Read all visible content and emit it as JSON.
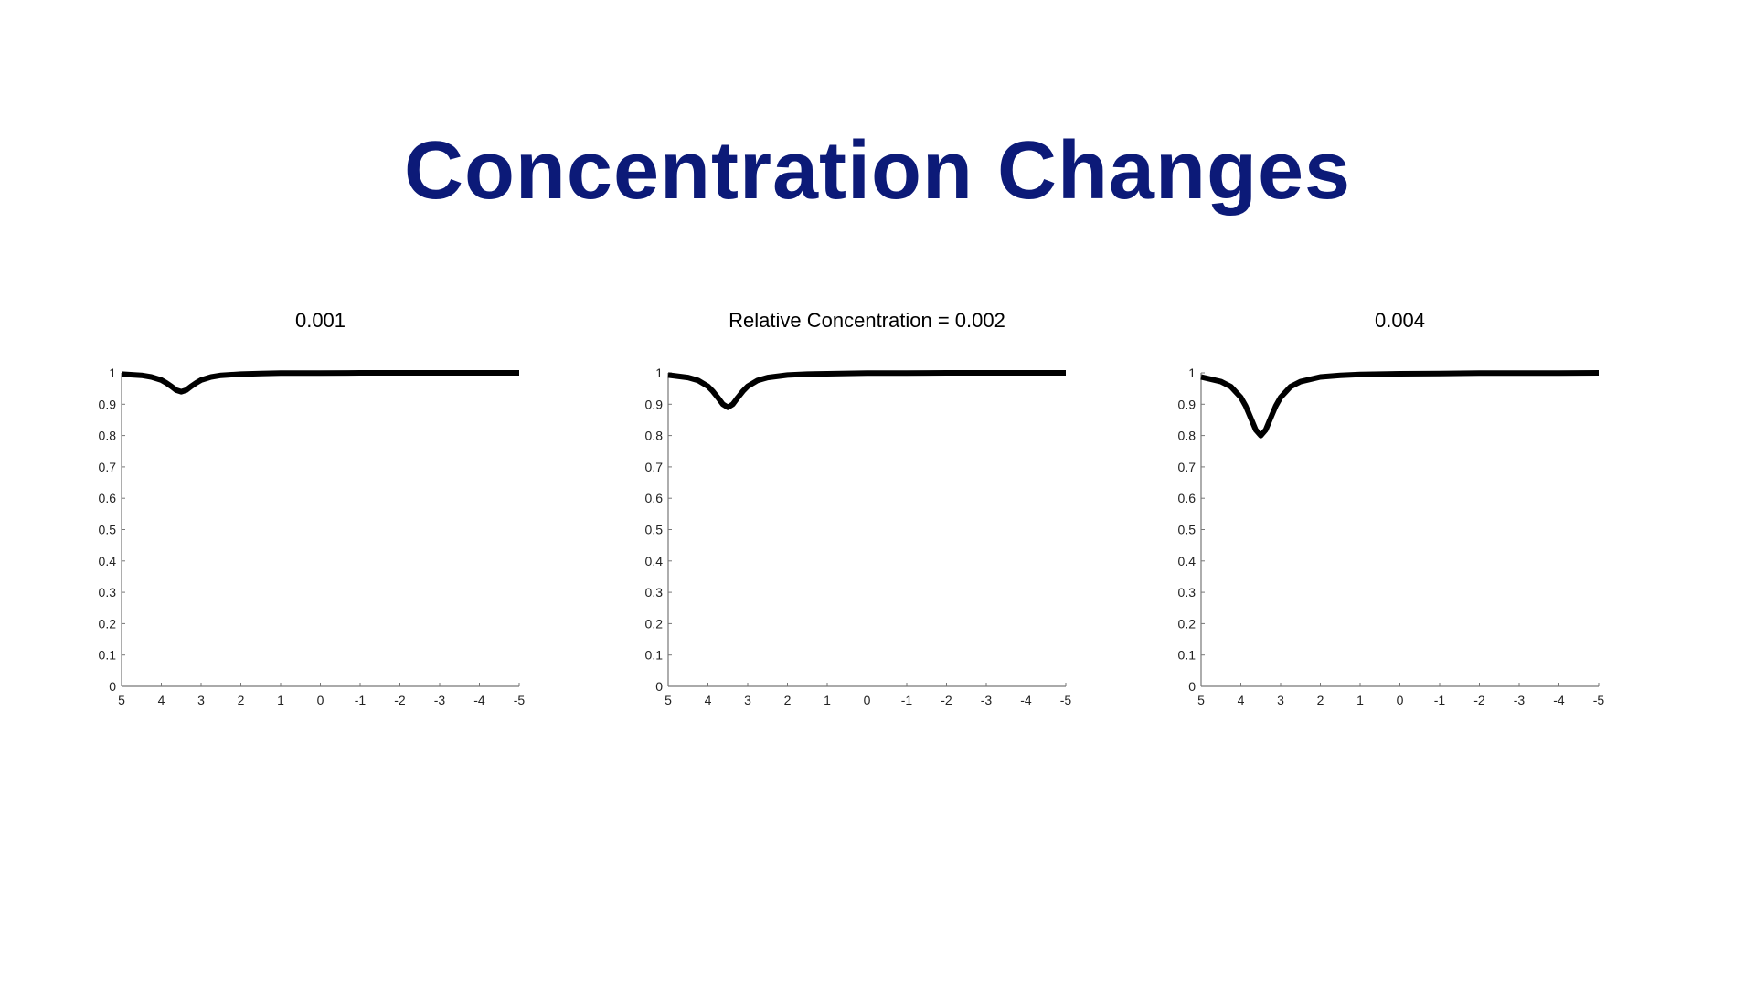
{
  "title": "Concentration Changes",
  "chart_data": [
    {
      "type": "line",
      "title": "0.001",
      "xlabel": "",
      "ylabel": "",
      "xlim": [
        5,
        -5
      ],
      "ylim": [
        0,
        1
      ],
      "xticks": [
        "5",
        "4",
        "3",
        "2",
        "1",
        "0",
        "-1",
        "-2",
        "-3",
        "-4",
        "-5"
      ],
      "yticks": [
        "0",
        "0.1",
        "0.2",
        "0.3",
        "0.4",
        "0.5",
        "0.6",
        "0.7",
        "0.8",
        "0.9",
        "1"
      ],
      "x": [
        5,
        4.5,
        4.25,
        4,
        3.875,
        3.75,
        3.625,
        3.5,
        3.375,
        3.25,
        3.125,
        3,
        2.75,
        2.5,
        2,
        1.5,
        1,
        0,
        -1,
        -2,
        -3,
        -4,
        -5
      ],
      "y": [
        0.996,
        0.992,
        0.987,
        0.977,
        0.968,
        0.957,
        0.945,
        0.94,
        0.945,
        0.957,
        0.968,
        0.977,
        0.987,
        0.992,
        0.996,
        0.998,
        0.999,
        0.999,
        1,
        1,
        1,
        1,
        1
      ],
      "color": "#000000"
    },
    {
      "type": "line",
      "title": "Relative Concentration = 0.002",
      "xlabel": "",
      "ylabel": "",
      "xlim": [
        5,
        -5
      ],
      "ylim": [
        0,
        1
      ],
      "xticks": [
        "5",
        "4",
        "3",
        "2",
        "1",
        "0",
        "-1",
        "-2",
        "-3",
        "-4",
        "-5"
      ],
      "yticks": [
        "0",
        "0.1",
        "0.2",
        "0.3",
        "0.4",
        "0.5",
        "0.6",
        "0.7",
        "0.8",
        "0.9",
        "1"
      ],
      "x": [
        5,
        4.5,
        4.25,
        4,
        3.875,
        3.75,
        3.625,
        3.5,
        3.375,
        3.25,
        3.125,
        3,
        2.75,
        2.5,
        2,
        1.5,
        1,
        0,
        -1,
        -2,
        -3,
        -4,
        -5
      ],
      "y": [
        0.993,
        0.985,
        0.976,
        0.957,
        0.941,
        0.921,
        0.9,
        0.89,
        0.9,
        0.921,
        0.941,
        0.957,
        0.976,
        0.985,
        0.993,
        0.996,
        0.997,
        0.999,
        0.999,
        1,
        1,
        1,
        1
      ],
      "color": "#000000"
    },
    {
      "type": "line",
      "title": "0.004",
      "xlabel": "",
      "ylabel": "",
      "xlim": [
        5,
        -5
      ],
      "ylim": [
        0,
        1
      ],
      "xticks": [
        "5",
        "4",
        "3",
        "2",
        "1",
        "0",
        "-1",
        "-2",
        "-3",
        "-4",
        "-5"
      ],
      "yticks": [
        "0",
        "0.1",
        "0.2",
        "0.3",
        "0.4",
        "0.5",
        "0.6",
        "0.7",
        "0.8",
        "0.9",
        "1"
      ],
      "x": [
        5,
        4.5,
        4.25,
        4,
        3.875,
        3.75,
        3.625,
        3.5,
        3.375,
        3.25,
        3.125,
        3,
        2.75,
        2.5,
        2,
        1.5,
        1,
        0,
        -1,
        -2,
        -3,
        -4,
        -5
      ],
      "y": [
        0.987,
        0.972,
        0.956,
        0.922,
        0.894,
        0.856,
        0.818,
        0.8,
        0.818,
        0.856,
        0.894,
        0.922,
        0.956,
        0.972,
        0.987,
        0.992,
        0.995,
        0.997,
        0.998,
        0.999,
        0.999,
        0.999,
        1
      ],
      "color": "#000000"
    }
  ]
}
